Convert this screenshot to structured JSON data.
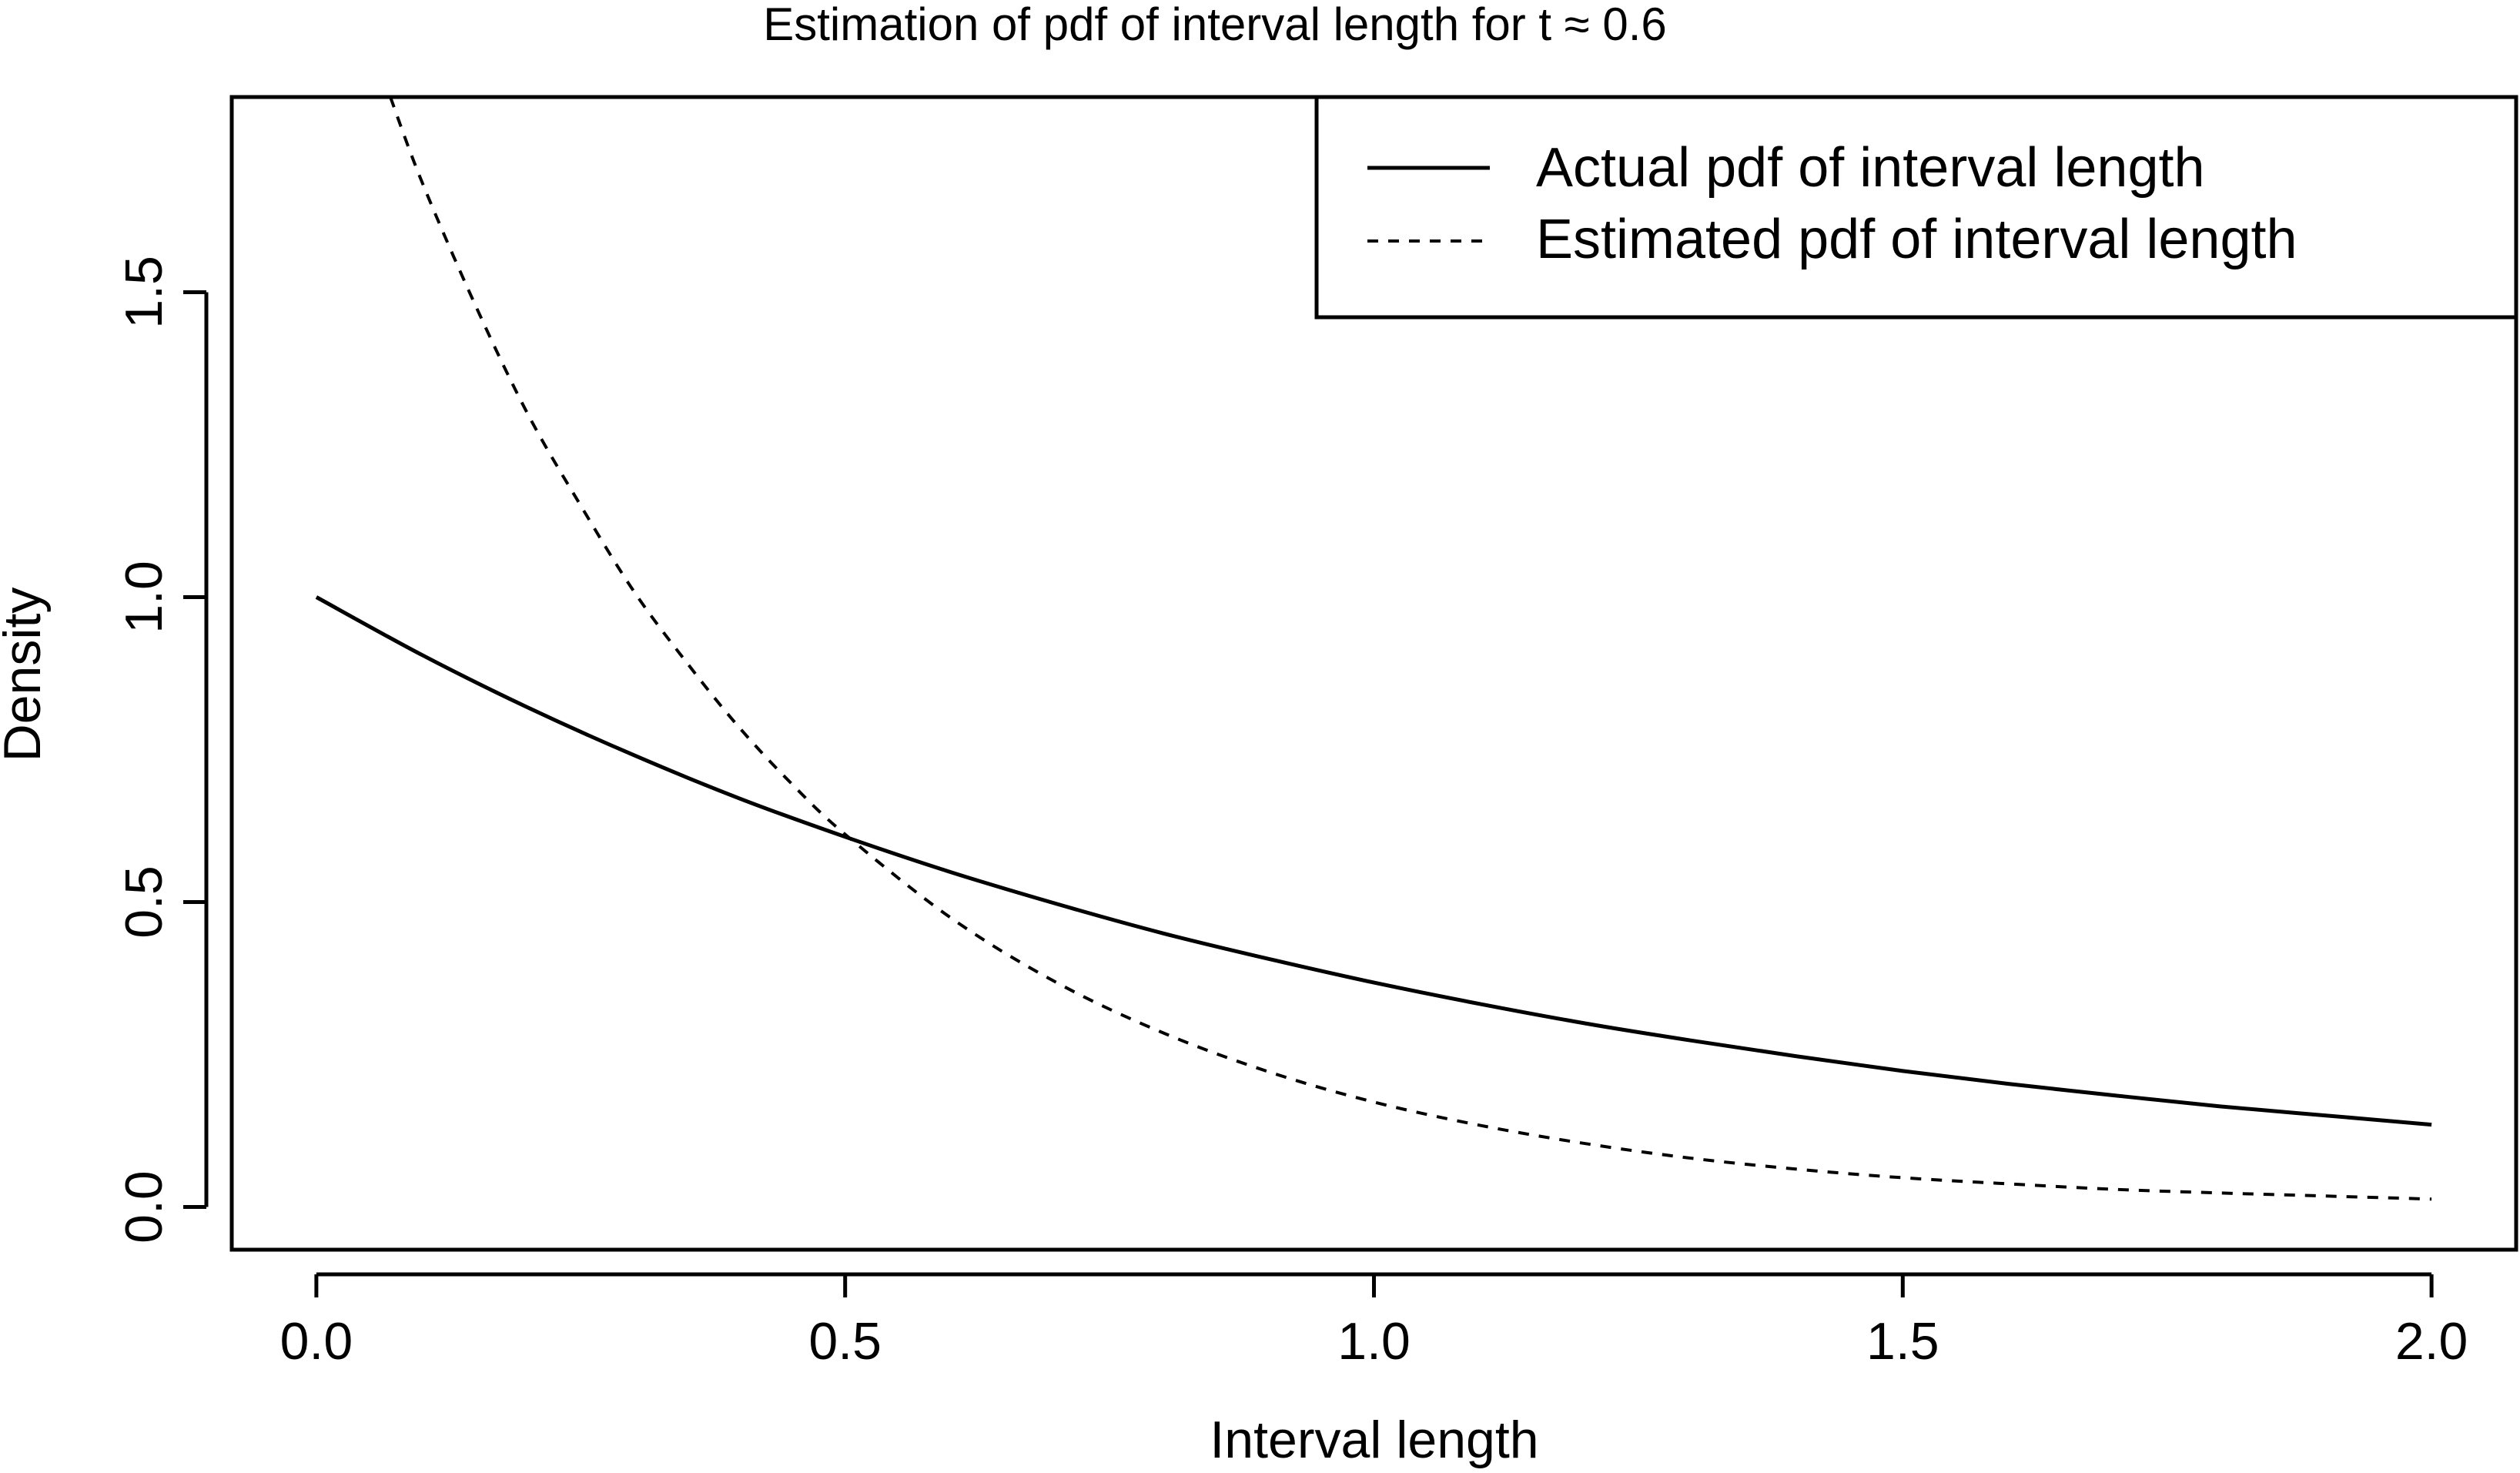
{
  "chart_data": {
    "type": "line",
    "title": "Estimation of pdf of interval length for t ≈ 0.6",
    "xlabel": "Interval length",
    "ylabel": "Density",
    "xlim": [
      -0.08,
      2.08
    ],
    "ylim": [
      -0.07,
      1.82
    ],
    "xticks": [
      0.0,
      0.5,
      1.0,
      1.5,
      2.0
    ],
    "xtick_labels": [
      "0.0",
      "0.5",
      "1.0",
      "1.5",
      "2.0"
    ],
    "yticks": [
      0.0,
      0.5,
      1.0,
      1.5
    ],
    "ytick_labels": [
      "0.0",
      "0.5",
      "1.0",
      "1.5"
    ],
    "grid": false,
    "legend_position": "top-right",
    "series": [
      {
        "name": "Actual pdf of interval length",
        "line_style": "solid",
        "color": "#000000",
        "x": [
          0.0,
          0.1,
          0.2,
          0.3,
          0.4,
          0.5,
          0.6,
          0.7,
          0.8,
          0.9,
          1.0,
          1.1,
          1.2,
          1.3,
          1.4,
          1.5,
          1.6,
          1.7,
          1.8,
          1.9,
          2.0
        ],
        "y": [
          1.0,
          0.905,
          0.819,
          0.741,
          0.67,
          0.607,
          0.549,
          0.497,
          0.449,
          0.407,
          0.368,
          0.333,
          0.301,
          0.273,
          0.247,
          0.223,
          0.202,
          0.183,
          0.165,
          0.15,
          0.135
        ]
      },
      {
        "name": "Estimated pdf of interval length",
        "line_style": "dashed",
        "color": "#000000",
        "x": [
          0.07,
          0.1,
          0.15,
          0.2,
          0.25,
          0.3,
          0.35,
          0.4,
          0.45,
          0.5,
          0.6,
          0.7,
          0.8,
          0.9,
          1.0,
          1.1,
          1.2,
          1.3,
          1.4,
          1.5,
          1.6,
          1.7,
          1.8,
          1.9,
          2.0
        ],
        "y": [
          1.82,
          1.68,
          1.48,
          1.3,
          1.15,
          1.01,
          0.893,
          0.786,
          0.693,
          0.611,
          0.474,
          0.368,
          0.286,
          0.222,
          0.172,
          0.134,
          0.104,
          0.08,
          0.062,
          0.048,
          0.038,
          0.029,
          0.023,
          0.018,
          0.013
        ]
      }
    ]
  }
}
